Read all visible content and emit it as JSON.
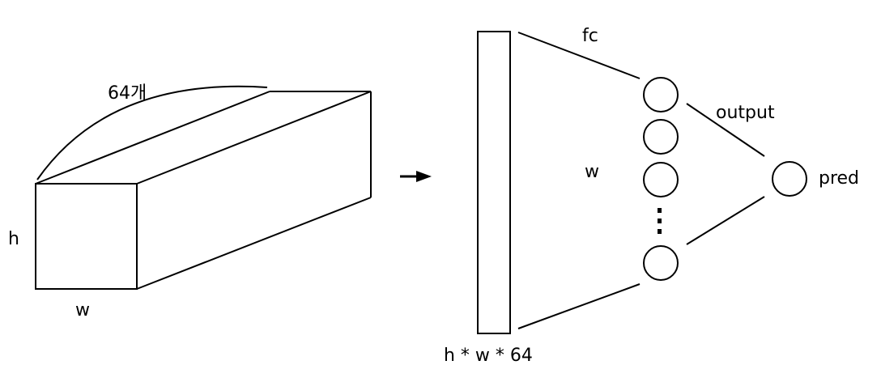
{
  "labels": {
    "channels": "64개",
    "height": "h",
    "width_tensor": "w",
    "flatten_size": "h * w * 64",
    "fc": "fc",
    "weights": "w",
    "output": "output",
    "pred": "pred"
  },
  "colors": {
    "stroke": "#000000",
    "background": "#ffffff"
  }
}
